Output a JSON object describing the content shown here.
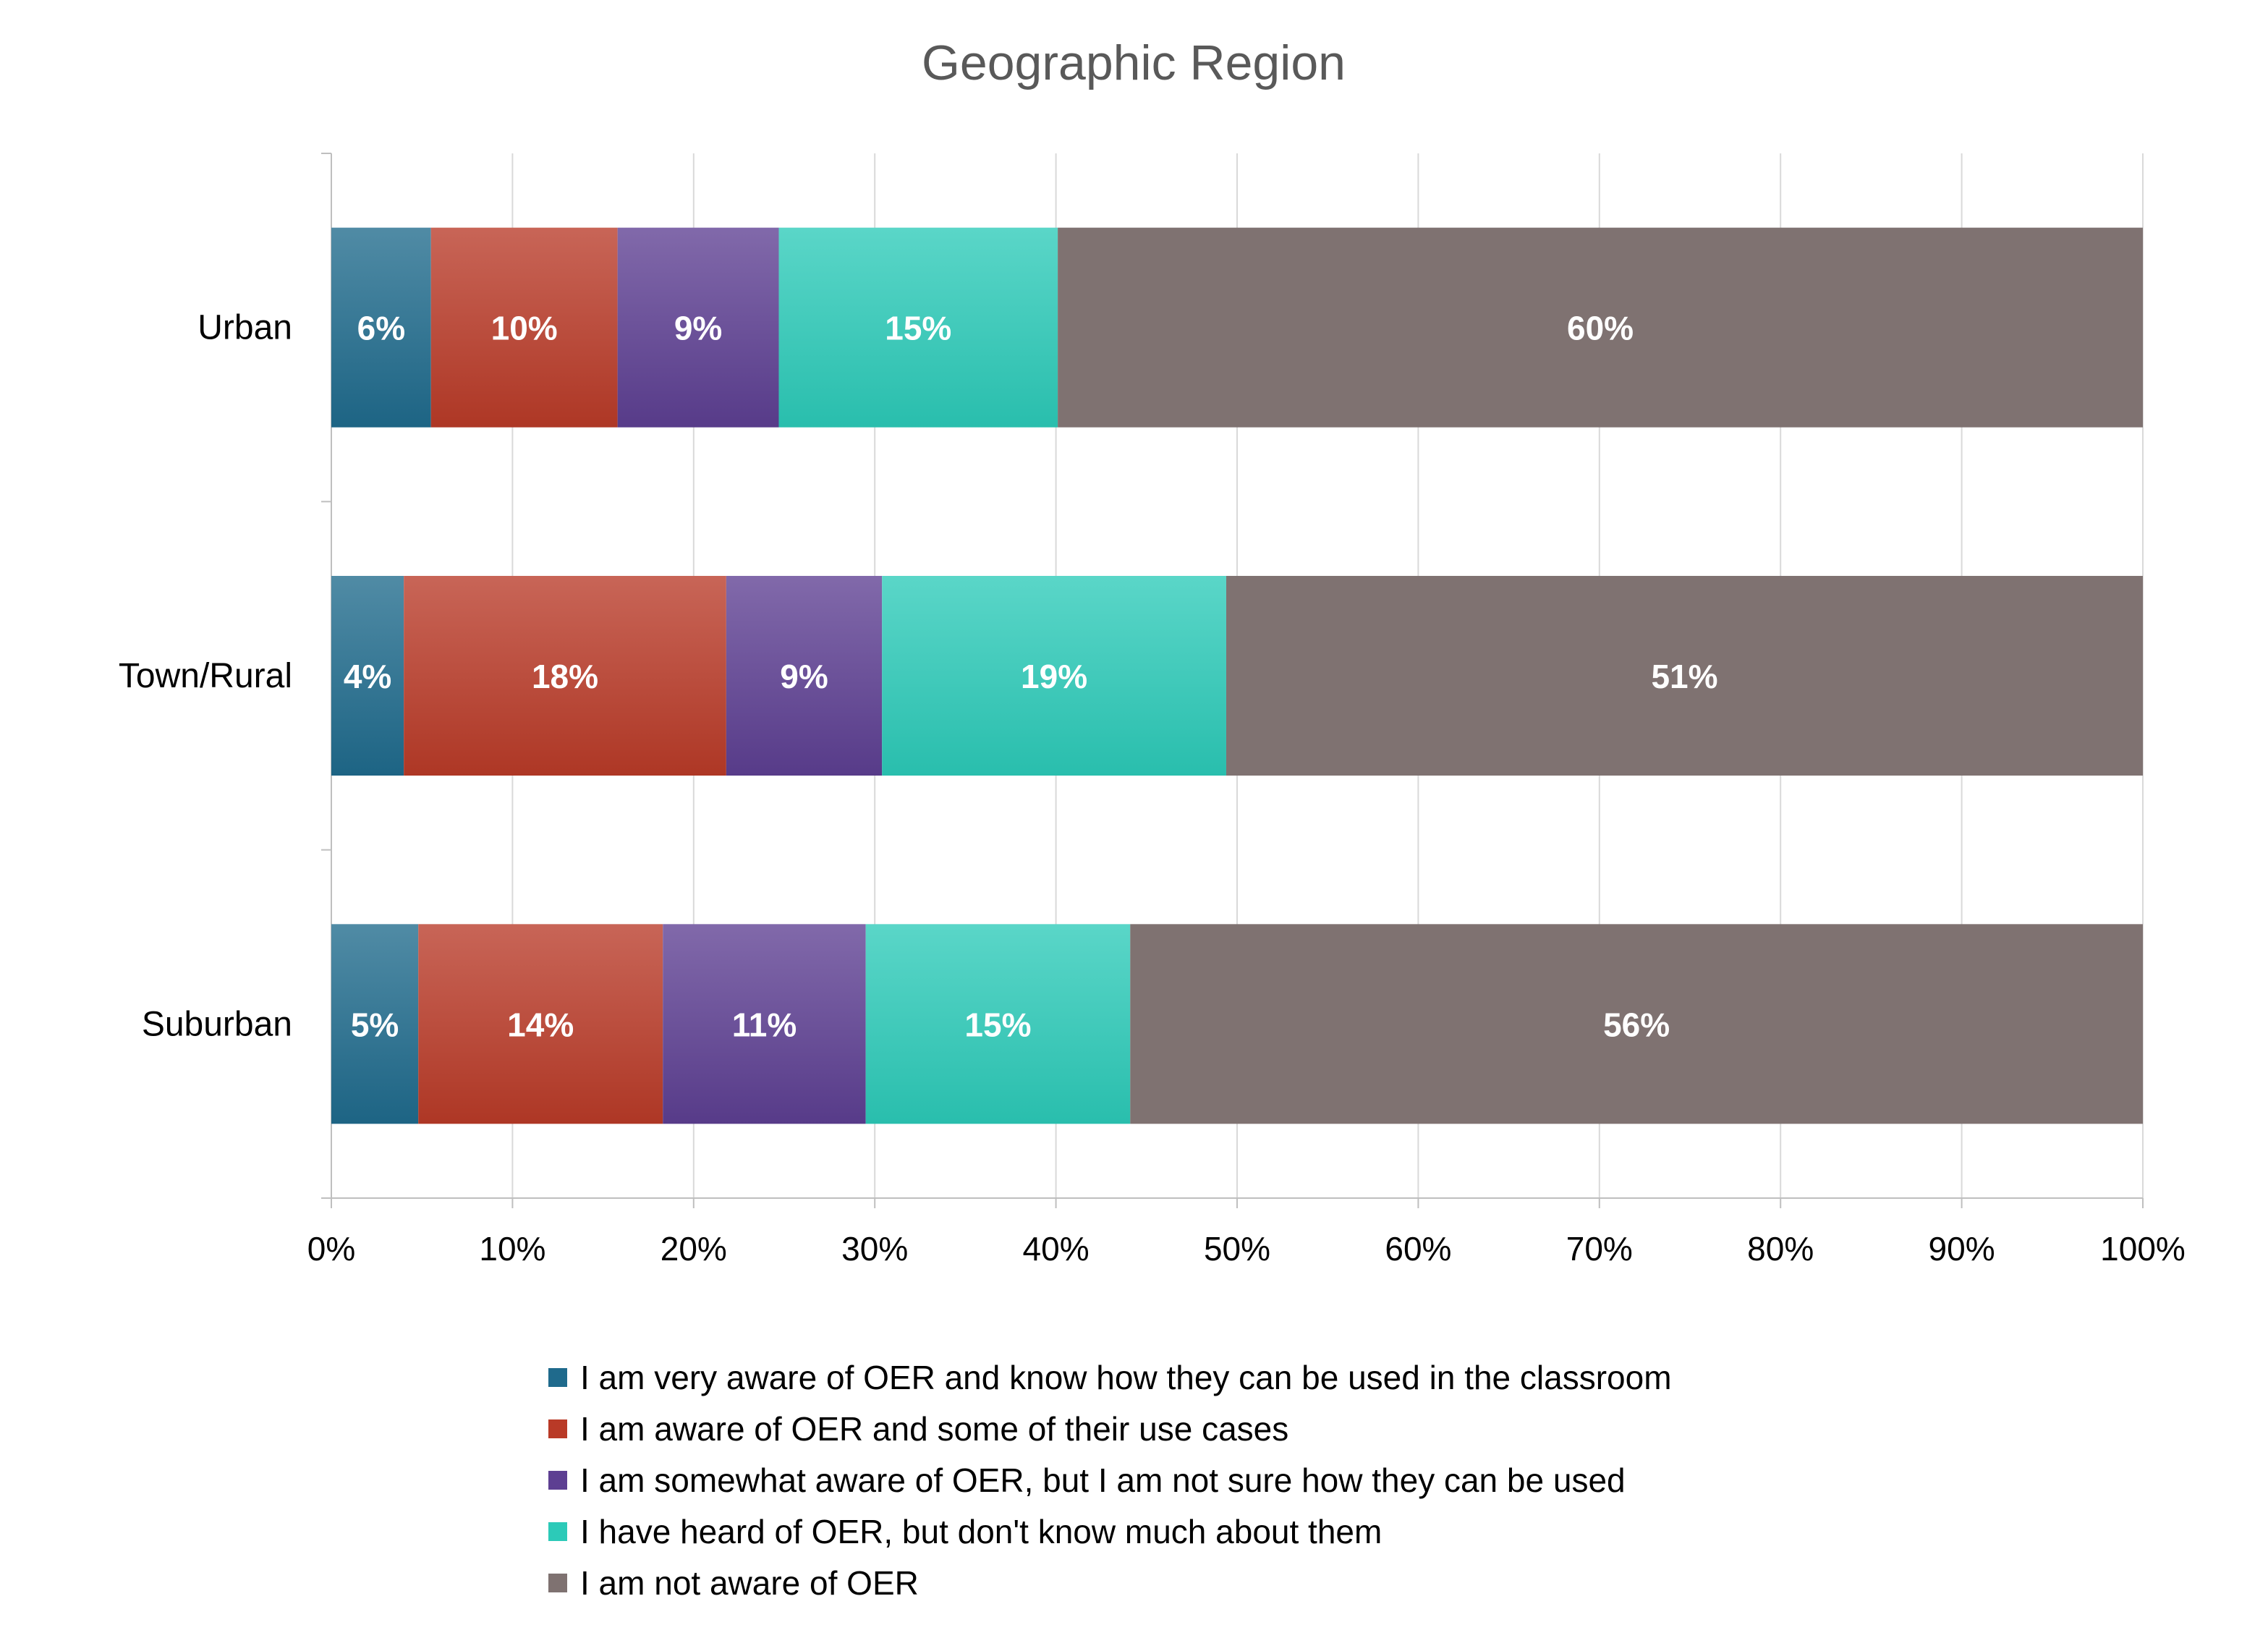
{
  "chart_data": {
    "type": "bar",
    "orientation": "horizontal",
    "stacked": true,
    "title": "Geographic Region",
    "xlabel": "",
    "ylabel": "",
    "xlim": [
      0,
      100
    ],
    "x_ticks": [
      "0%",
      "10%",
      "20%",
      "30%",
      "40%",
      "50%",
      "60%",
      "70%",
      "80%",
      "90%",
      "100%"
    ],
    "grid": true,
    "legend_position": "bottom",
    "categories": [
      "Urban",
      "Town/Rural",
      "Suburban"
    ],
    "series": [
      {
        "name": "I am very aware of OER and know how they can be used in the classroom",
        "color": "#1f6a8c",
        "values": [
          5.5,
          4.0,
          4.8
        ],
        "labels": [
          "6%",
          "4%",
          "5%"
        ]
      },
      {
        "name": "I am aware of OER and some of their use cases",
        "color": "#b93a27",
        "values": [
          10.3,
          17.8,
          13.5
        ],
        "labels": [
          "10%",
          "18%",
          "14%"
        ]
      },
      {
        "name": "I am somewhat aware of OER, but I am not sure how they can be used",
        "color": "#5d3f92",
        "values": [
          8.9,
          8.6,
          11.2
        ],
        "labels": [
          "9%",
          "9%",
          "11%"
        ]
      },
      {
        "name": "I have heard of OER, but don't know much about them",
        "color": "#2ccab8",
        "values": [
          15.4,
          19.0,
          14.6
        ],
        "labels": [
          "15%",
          "19%",
          "15%"
        ]
      },
      {
        "name": "I am not aware of OER",
        "color": "#7f7271",
        "values": [
          59.9,
          50.6,
          55.9
        ],
        "labels": [
          "60%",
          "51%",
          "56%"
        ]
      }
    ]
  }
}
